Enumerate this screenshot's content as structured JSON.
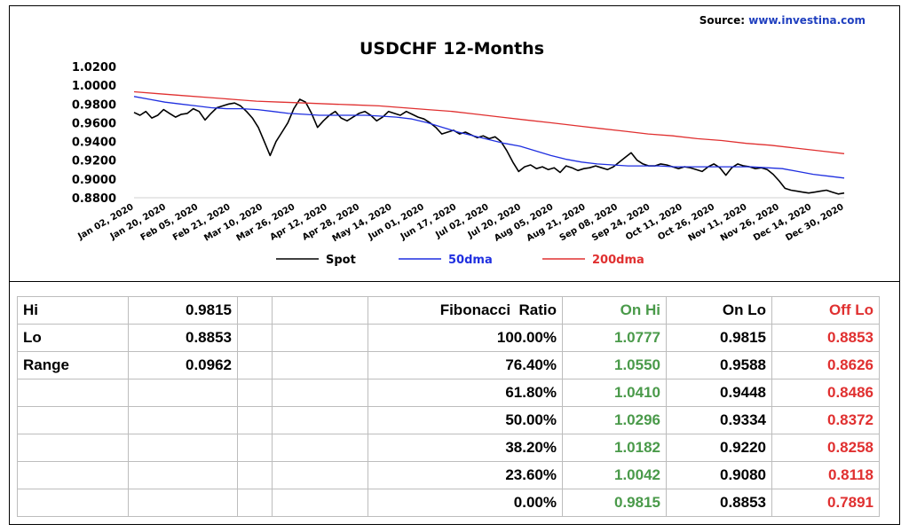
{
  "source": {
    "prefix": "Source:",
    "site": "www.investina.com"
  },
  "chart_data": {
    "type": "line",
    "title": "USDCHF 12-Months",
    "xlabel": "",
    "ylabel": "",
    "ylim": [
      0.88,
      1.02
    ],
    "yticks": [
      "1.0200",
      "1.0000",
      "0.9800",
      "0.9600",
      "0.9400",
      "0.9200",
      "0.9000",
      "0.8800"
    ],
    "x_ticks": [
      "Jan 02, 2020",
      "Jan 20, 2020",
      "Feb 05, 2020",
      "Feb 21, 2020",
      "Mar 10, 2020",
      "Mar 26, 2020",
      "Apr 12, 2020",
      "Apr 28, 2020",
      "May 14, 2020",
      "Jun 01, 2020",
      "Jun 17, 2020",
      "Jul 02, 2020",
      "Jul 20, 2020",
      "Aug 05, 2020",
      "Aug 21, 2020",
      "Sep 08, 2020",
      "Sep 24, 2020",
      "Oct 11, 2020",
      "Oct 26, 2020",
      "Nov 11, 2020",
      "Nov 26, 2020",
      "Dec 14, 2020",
      "Dec 30, 2020"
    ],
    "grid": false,
    "legend_position": "bottom",
    "series": [
      {
        "name": "Spot",
        "color": "#000000",
        "values": [
          0.971,
          0.968,
          0.972,
          0.965,
          0.968,
          0.974,
          0.97,
          0.966,
          0.969,
          0.97,
          0.975,
          0.972,
          0.963,
          0.97,
          0.976,
          0.978,
          0.98,
          0.981,
          0.978,
          0.972,
          0.965,
          0.955,
          0.94,
          0.925,
          0.94,
          0.95,
          0.96,
          0.975,
          0.985,
          0.982,
          0.97,
          0.955,
          0.962,
          0.968,
          0.972,
          0.965,
          0.962,
          0.966,
          0.97,
          0.972,
          0.968,
          0.962,
          0.966,
          0.972,
          0.97,
          0.968,
          0.972,
          0.969,
          0.966,
          0.964,
          0.96,
          0.955,
          0.948,
          0.95,
          0.952,
          0.948,
          0.95,
          0.947,
          0.944,
          0.946,
          0.943,
          0.945,
          0.94,
          0.93,
          0.918,
          0.908,
          0.913,
          0.915,
          0.911,
          0.913,
          0.91,
          0.912,
          0.907,
          0.914,
          0.912,
          0.909,
          0.911,
          0.912,
          0.914,
          0.912,
          0.91,
          0.913,
          0.918,
          0.923,
          0.928,
          0.92,
          0.916,
          0.914,
          0.914,
          0.916,
          0.915,
          0.913,
          0.911,
          0.913,
          0.912,
          0.91,
          0.908,
          0.913,
          0.916,
          0.912,
          0.904,
          0.912,
          0.916,
          0.914,
          0.913,
          0.911,
          0.912,
          0.91,
          0.905,
          0.898,
          0.89,
          0.888,
          0.887,
          0.886,
          0.885,
          0.886,
          0.887,
          0.888,
          0.886,
          0.884,
          0.885
        ]
      },
      {
        "name": "50dma",
        "color": "#1f2fe0",
        "values": [
          0.988,
          0.985,
          0.982,
          0.98,
          0.978,
          0.976,
          0.975,
          0.975,
          0.974,
          0.972,
          0.97,
          0.969,
          0.968,
          0.968,
          0.968,
          0.968,
          0.967,
          0.966,
          0.964,
          0.96,
          0.955,
          0.95,
          0.946,
          0.942,
          0.938,
          0.935,
          0.93,
          0.925,
          0.921,
          0.918,
          0.916,
          0.915,
          0.914,
          0.914,
          0.914,
          0.913,
          0.913,
          0.913,
          0.913,
          0.913,
          0.913,
          0.912,
          0.911,
          0.908,
          0.905,
          0.903,
          0.901
        ]
      },
      {
        "name": "200dma",
        "color": "#e03030",
        "values": [
          0.993,
          0.991,
          0.989,
          0.987,
          0.985,
          0.983,
          0.982,
          0.981,
          0.98,
          0.979,
          0.978,
          0.976,
          0.974,
          0.972,
          0.969,
          0.966,
          0.963,
          0.96,
          0.957,
          0.954,
          0.951,
          0.948,
          0.946,
          0.943,
          0.941,
          0.938,
          0.936,
          0.933,
          0.93,
          0.927
        ]
      }
    ]
  },
  "table": {
    "hi_label": "Hi",
    "hi_value": "0.9815",
    "lo_label": "Lo",
    "lo_value": "0.8853",
    "range_label": "Range",
    "range_value": "0.0962",
    "headers": {
      "ratio": "Fibonacci  Ratio",
      "on_hi": "On Hi",
      "on_lo": "On Lo",
      "off_lo": "Off Lo"
    },
    "rows": [
      {
        "ratio": "100.00%",
        "on_hi": "1.0777",
        "on_lo": "0.9815",
        "off_lo": "0.8853"
      },
      {
        "ratio": "76.40%",
        "on_hi": "1.0550",
        "on_lo": "0.9588",
        "off_lo": "0.8626"
      },
      {
        "ratio": "61.80%",
        "on_hi": "1.0410",
        "on_lo": "0.9448",
        "off_lo": "0.8486"
      },
      {
        "ratio": "50.00%",
        "on_hi": "1.0296",
        "on_lo": "0.9334",
        "off_lo": "0.8372"
      },
      {
        "ratio": "38.20%",
        "on_hi": "1.0182",
        "on_lo": "0.9220",
        "off_lo": "0.8258"
      },
      {
        "ratio": "23.60%",
        "on_hi": "1.0042",
        "on_lo": "0.9080",
        "off_lo": "0.8118"
      },
      {
        "ratio": "0.00%",
        "on_hi": "0.9815",
        "on_lo": "0.8853",
        "off_lo": "0.7891"
      }
    ]
  }
}
